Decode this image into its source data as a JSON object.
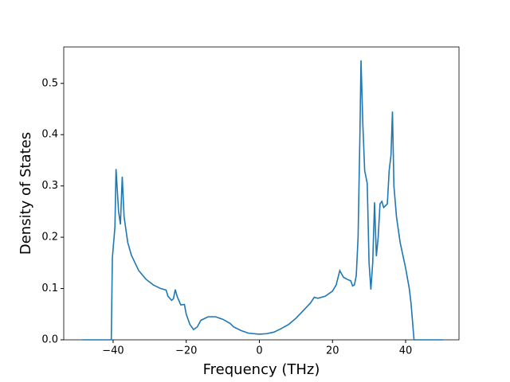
{
  "chart_data": {
    "type": "line",
    "xlabel": "Frequency (THz)",
    "ylabel": "Density of States",
    "xlim": [
      -53.5,
      54.6
    ],
    "ylim": [
      0,
      0.571
    ],
    "xticks": [
      {
        "value": -40,
        "label": "−40"
      },
      {
        "value": -20,
        "label": "−20"
      },
      0,
      20,
      40
    ],
    "yticks": [
      {
        "value": 0,
        "label": "0.0"
      },
      0.1,
      0.2,
      0.3,
      0.4,
      0.5
    ],
    "series": [
      {
        "color": "#1f77b4",
        "x": [
          -48.6,
          -40.5,
          -40.2,
          -39.5,
          -39.2,
          -38.5,
          -38,
          -37.5,
          -37,
          -36,
          -35,
          -33,
          -31,
          -29,
          -27,
          -25.5,
          -25,
          -24,
          -23.5,
          -23,
          -22.5,
          -21.5,
          -20.5,
          -20,
          -19,
          -18,
          -17,
          -16,
          -14,
          -12,
          -10,
          -8,
          -7,
          -5,
          -3,
          0,
          2,
          4,
          6,
          8,
          10,
          12,
          14,
          15,
          16,
          18,
          20,
          21,
          22,
          23,
          24,
          25,
          25.5,
          26,
          26.5,
          27,
          27.5,
          27.8,
          28.3,
          28.8,
          29.5,
          30,
          30.5,
          31,
          31.5,
          32,
          32.5,
          33,
          33.5,
          34,
          35,
          35.5,
          36,
          36.4,
          36.8,
          37.5,
          38.5,
          40,
          41,
          41.5,
          42.3,
          50.2
        ],
        "values": [
          0,
          0,
          0.16,
          0.22,
          0.333,
          0.25,
          0.225,
          0.318,
          0.24,
          0.19,
          0.165,
          0.135,
          0.118,
          0.107,
          0.1,
          0.097,
          0.085,
          0.077,
          0.08,
          0.098,
          0.085,
          0.068,
          0.069,
          0.05,
          0.03,
          0.02,
          0.025,
          0.038,
          0.045,
          0.045,
          0.04,
          0.032,
          0.025,
          0.018,
          0.013,
          0.011,
          0.012,
          0.015,
          0.022,
          0.03,
          0.042,
          0.057,
          0.072,
          0.083,
          0.081,
          0.085,
          0.095,
          0.107,
          0.135,
          0.122,
          0.118,
          0.115,
          0.105,
          0.107,
          0.125,
          0.2,
          0.4,
          0.545,
          0.42,
          0.33,
          0.305,
          0.15,
          0.098,
          0.15,
          0.268,
          0.163,
          0.2,
          0.265,
          0.27,
          0.258,
          0.265,
          0.33,
          0.36,
          0.445,
          0.3,
          0.24,
          0.19,
          0.14,
          0.1,
          0.07,
          0,
          0
        ]
      }
    ]
  }
}
